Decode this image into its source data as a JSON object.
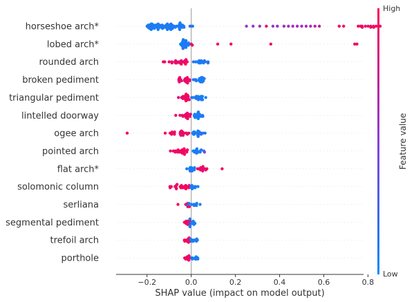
{
  "chart_data": {
    "type": "scatter",
    "subtype": "shap-beeswarm",
    "xlabel": "SHAP value (impact on model output)",
    "xlim": [
      -0.34,
      0.78
    ],
    "xticks": [
      -0.2,
      0.0,
      0.2,
      0.4,
      0.6,
      0.8
    ],
    "xtick_labels": [
      "−0.2",
      "0.0",
      "0.2",
      "0.4",
      "0.6",
      "0.8"
    ],
    "colorbar": {
      "label": "Feature value",
      "high_label": "High",
      "low_label": "Low",
      "low_color": "#008bfb",
      "high_color": "#ff0051"
    },
    "grid": false,
    "features": [
      {
        "name": "horseshoe arch*",
        "low_clusters": [
          [
            -0.19,
            -0.2,
            0.02,
            90
          ]
        ],
        "high_clusters": [
          [
            0.745,
            0.755,
            0.9,
            12
          ]
        ],
        "points": [
          [
            -0.2,
            0.1
          ],
          [
            -0.18,
            0.15
          ],
          [
            0.25,
            0.55
          ],
          [
            0.28,
            0.55
          ],
          [
            0.31,
            0.55
          ],
          [
            0.34,
            0.9
          ],
          [
            0.37,
            0.55
          ],
          [
            0.39,
            0.6
          ],
          [
            0.42,
            0.6
          ],
          [
            0.44,
            0.6
          ],
          [
            0.46,
            0.6
          ],
          [
            0.48,
            0.6
          ],
          [
            0.5,
            0.6
          ],
          [
            0.52,
            0.65
          ],
          [
            0.54,
            0.6
          ],
          [
            0.56,
            0.7
          ],
          [
            0.58,
            0.75
          ],
          [
            0.67,
            0.95
          ],
          [
            0.69,
            0.95
          ]
        ]
      },
      {
        "name": "lobed arch*",
        "low_clusters": [
          [
            -0.05,
            -0.03,
            -0.01,
            30
          ]
        ],
        "high_clusters": [],
        "points": [
          [
            0.0,
            0.95
          ],
          [
            0.005,
            0.95
          ],
          [
            0.12,
            0.95
          ],
          [
            0.18,
            0.95
          ],
          [
            0.36,
            0.95
          ],
          [
            0.74,
            0.95
          ],
          [
            0.75,
            0.95
          ]
        ]
      },
      {
        "name": "rounded arch",
        "low_clusters": [
          [
            0.0,
            0.04,
            0.09,
            14
          ]
        ],
        "high_clusters": [
          [
            -0.13,
            -0.05,
            0.0,
            22
          ]
        ],
        "points": [
          [
            -0.12,
            0.95
          ],
          [
            -0.1,
            0.95
          ],
          [
            0.01,
            0.2
          ],
          [
            0.02,
            0.05
          ]
        ]
      },
      {
        "name": "broken pediment",
        "low_clusters": [
          [
            0.0,
            0.03,
            0.07,
            20
          ]
        ],
        "high_clusters": [
          [
            -0.07,
            -0.02,
            0.0,
            22
          ]
        ],
        "points": []
      },
      {
        "name": "triangular pediment",
        "low_clusters": [
          [
            0.0,
            0.03,
            0.07,
            20
          ]
        ],
        "high_clusters": [
          [
            -0.07,
            -0.02,
            0.0,
            22
          ]
        ],
        "points": []
      },
      {
        "name": "lintelled doorway",
        "low_clusters": [
          [
            0.0,
            0.03,
            0.07,
            20
          ]
        ],
        "high_clusters": [
          [
            -0.07,
            -0.02,
            0.0,
            20
          ]
        ],
        "points": [
          [
            -0.07,
            0.95
          ]
        ]
      },
      {
        "name": "ogee arch",
        "low_clusters": [
          [
            0.0,
            0.03,
            0.07,
            20
          ]
        ],
        "high_clusters": [
          [
            -0.13,
            -0.05,
            0.0,
            22
          ]
        ],
        "points": [
          [
            -0.29,
            0.95
          ]
        ]
      },
      {
        "name": "pointed arch",
        "low_clusters": [
          [
            0.0,
            0.02,
            0.06,
            14
          ]
        ],
        "high_clusters": [
          [
            -0.1,
            -0.04,
            0.0,
            26
          ]
        ],
        "points": [
          [
            0.06,
            0.5
          ]
        ]
      },
      {
        "name": "flat arch*",
        "low_clusters": [
          [
            -0.01,
            0.0,
            0.02,
            12
          ]
        ],
        "high_clusters": [
          [
            0.025,
            0.055,
            0.085,
            14
          ]
        ],
        "points": [
          [
            -0.02,
            0.1
          ],
          [
            0.14,
            0.95
          ]
        ]
      },
      {
        "name": "solomonic column",
        "low_clusters": [
          [
            -0.005,
            0.005,
            0.04,
            10
          ]
        ],
        "high_clusters": [
          [
            -0.1,
            -0.03,
            0.0,
            24
          ]
        ],
        "points": []
      },
      {
        "name": "serliana",
        "low_clusters": [
          [
            -0.02,
            0.0,
            0.04,
            10
          ]
        ],
        "high_clusters": [
          [
            -0.03,
            -0.015,
            -0.005,
            6
          ]
        ],
        "points": [
          [
            -0.06,
            0.95
          ],
          [
            0.04,
            0.05
          ]
        ]
      },
      {
        "name": "segmental pediment",
        "low_clusters": [
          [
            -0.01,
            0.005,
            0.02,
            12
          ]
        ],
        "high_clusters": [
          [
            -0.04,
            -0.015,
            0.0,
            14
          ]
        ],
        "points": []
      },
      {
        "name": "trefoil arch",
        "low_clusters": [
          [
            -0.01,
            0.005,
            0.04,
            10
          ]
        ],
        "high_clusters": [
          [
            -0.04,
            -0.015,
            0.0,
            12
          ]
        ],
        "points": []
      },
      {
        "name": "porthole",
        "low_clusters": [
          [
            -0.01,
            0.01,
            0.045,
            10
          ]
        ],
        "high_clusters": [
          [
            -0.03,
            -0.01,
            0.0,
            12
          ]
        ],
        "points": []
      }
    ]
  }
}
